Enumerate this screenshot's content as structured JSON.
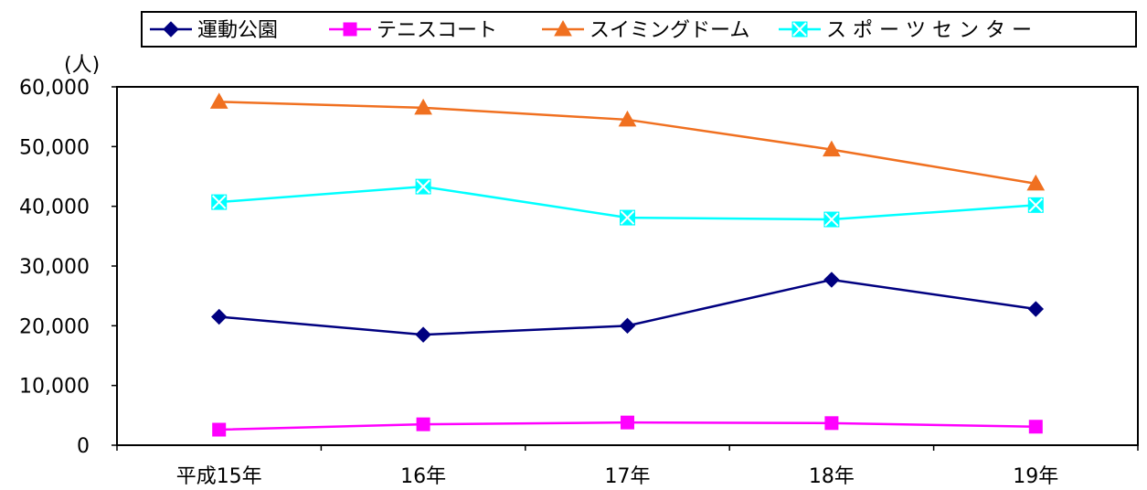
{
  "chart_data": {
    "type": "line",
    "unit_label": "(人)",
    "categories": [
      "平成15年",
      "16年",
      "17年",
      "18年",
      "19年"
    ],
    "ylim": [
      0,
      60000
    ],
    "y_ticks": [
      "0",
      "10,000",
      "20,000",
      "30,000",
      "40,000",
      "50,000",
      "60,000"
    ],
    "grid": false,
    "legend_position": "top",
    "series": [
      {
        "name": "運動公園",
        "color": "#000080",
        "marker": "diamond",
        "values": [
          21500,
          18500,
          20000,
          27700,
          22800
        ]
      },
      {
        "name": "テニスコート",
        "color": "#ff00ff",
        "marker": "square",
        "values": [
          2600,
          3500,
          3800,
          3700,
          3100
        ]
      },
      {
        "name": "スイミングドーム",
        "color": "#f07020",
        "marker": "triangle",
        "values": [
          57500,
          56500,
          54500,
          49500,
          43800
        ]
      },
      {
        "name": "ス ポ ー ツ セ ン タ ー",
        "color": "#00ffff",
        "marker": "x-square",
        "values": [
          40700,
          43300,
          38100,
          37800,
          40200
        ]
      }
    ]
  }
}
